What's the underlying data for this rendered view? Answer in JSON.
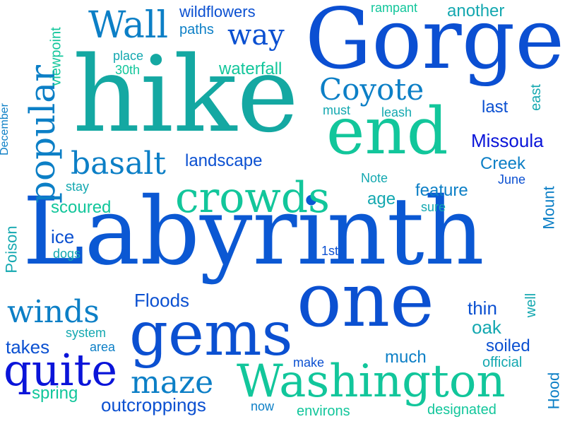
{
  "words": {
    "labyrinth": "Labyrinth",
    "gorge": "Gorge",
    "hike": "hike",
    "end": "end",
    "one": "one",
    "gems": "gems",
    "washington": "Washington",
    "crowds": "crowds",
    "popular": "popular",
    "quite": "quite",
    "wall": "Wall",
    "coyote": "Coyote",
    "basalt": "basalt",
    "way": "way",
    "maze": "maze",
    "winds": "winds",
    "wildflowers": "wildflowers",
    "paths": "paths",
    "rampant": "rampant",
    "another": "another",
    "place": "place",
    "thirtieth": "30th",
    "waterfall": "waterfall",
    "viewpoint": "viewpoint",
    "december": "December",
    "must": "must",
    "leash": "leash",
    "last": "last",
    "east": "east",
    "missoula": "Missoula",
    "creek": "Creek",
    "landscape": "landscape",
    "note": "Note",
    "june": "June",
    "stay": "stay",
    "age": "age",
    "feature": "feature",
    "scoured": "scoured",
    "sure": "sure",
    "mount": "Mount",
    "ice": "ice",
    "dogs": "dogs",
    "poison": "Poison",
    "first": "1st",
    "floods": "Floods",
    "thin": "thin",
    "well": "well",
    "oak": "oak",
    "system": "system",
    "takes": "takes",
    "area": "area",
    "soiled": "soiled",
    "make": "make",
    "much": "much",
    "official": "official",
    "hood": "Hood",
    "spring": "spring",
    "outcroppings": "outcroppings",
    "now": "now",
    "environs": "environs",
    "designated": "designated"
  },
  "colors": {
    "background": "#ffffff",
    "palette": [
      "#0a14d9",
      "#0b50d1",
      "#0c7fc6",
      "#14a8b0",
      "#12c69b",
      "#0fd99a"
    ]
  }
}
